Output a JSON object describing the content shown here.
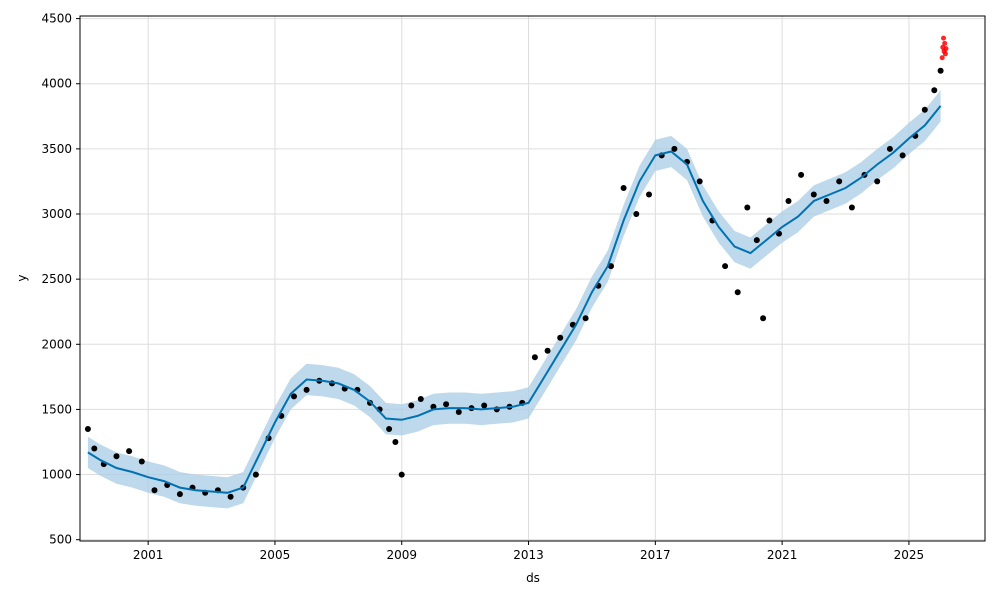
{
  "chart_data": {
    "type": "scatter",
    "title": "",
    "xlabel": "ds",
    "ylabel": "y",
    "xlim": [
      1998.85,
      2027.4
    ],
    "ylim": [
      490,
      4520
    ],
    "grid": true,
    "legend": "none",
    "x_ticks": [
      {
        "value": 2001,
        "label": "2001"
      },
      {
        "value": 2005,
        "label": "2005"
      },
      {
        "value": 2009,
        "label": "2009"
      },
      {
        "value": 2013,
        "label": "2013"
      },
      {
        "value": 2017,
        "label": "2017"
      },
      {
        "value": 2021,
        "label": "2021"
      },
      {
        "value": 2025,
        "label": "2025"
      }
    ],
    "y_ticks": [
      {
        "value": 500,
        "label": "500"
      },
      {
        "value": 1000,
        "label": "1000"
      },
      {
        "value": 1500,
        "label": "1500"
      },
      {
        "value": 2000,
        "label": "2000"
      },
      {
        "value": 2500,
        "label": "2500"
      },
      {
        "value": 3000,
        "label": "3000"
      },
      {
        "value": 3500,
        "label": "3500"
      },
      {
        "value": 4000,
        "label": "4000"
      },
      {
        "value": 4500,
        "label": "4500"
      }
    ],
    "colors": {
      "observed": "#000000",
      "forecast_points": "#ff0000",
      "trend_line": "#0072b2",
      "uncertainty_band": "#a8cce6",
      "grid": "#dddddd",
      "axis": "#000000"
    },
    "series": [
      {
        "kind": "trend",
        "x": [
          1999.1,
          1999.5,
          2000.0,
          2000.5,
          2001.0,
          2001.5,
          2002.0,
          2002.5,
          2003.0,
          2003.5,
          2004.0,
          2004.5,
          2005.0,
          2005.5,
          2006.0,
          2006.5,
          2007.0,
          2007.5,
          2008.0,
          2008.5,
          2009.0,
          2009.5,
          2010.0,
          2010.5,
          2011.0,
          2011.5,
          2012.0,
          2012.5,
          2013.0,
          2013.5,
          2014.0,
          2014.5,
          2015.0,
          2015.5,
          2016.0,
          2016.5,
          2017.0,
          2017.5,
          2018.0,
          2018.5,
          2019.0,
          2019.5,
          2020.0,
          2020.5,
          2021.0,
          2021.5,
          2022.0,
          2022.5,
          2023.0,
          2023.5,
          2024.0,
          2024.5,
          2025.0,
          2025.5,
          2026.0
        ],
        "y": [
          1170,
          1110,
          1050,
          1020,
          980,
          950,
          900,
          880,
          870,
          860,
          900,
          1150,
          1400,
          1620,
          1730,
          1720,
          1700,
          1650,
          1560,
          1430,
          1420,
          1450,
          1500,
          1510,
          1510,
          1500,
          1510,
          1520,
          1550,
          1750,
          1950,
          2150,
          2400,
          2600,
          2950,
          3250,
          3450,
          3480,
          3380,
          3100,
          2900,
          2750,
          2700,
          2800,
          2900,
          2980,
          3100,
          3150,
          3200,
          3280,
          3380,
          3470,
          3580,
          3680,
          3830
        ],
        "band_half_width": 120
      },
      {
        "kind": "observed",
        "x": [
          1999.1,
          1999.3,
          1999.6,
          2000.0,
          2000.4,
          2000.8,
          2001.2,
          2001.6,
          2002.0,
          2002.4,
          2002.8,
          2003.2,
          2003.6,
          2004.0,
          2004.4,
          2004.8,
          2005.2,
          2005.6,
          2006.0,
          2006.4,
          2006.8,
          2007.2,
          2007.6,
          2008.0,
          2008.3,
          2008.6,
          2008.8,
          2009.0,
          2009.3,
          2009.6,
          2010.0,
          2010.4,
          2010.8,
          2011.2,
          2011.6,
          2012.0,
          2012.4,
          2012.8,
          2013.2,
          2013.6,
          2014.0,
          2014.4,
          2014.8,
          2015.2,
          2015.6,
          2016.0,
          2016.4,
          2016.8,
          2017.2,
          2017.6,
          2018.0,
          2018.4,
          2018.8,
          2019.2,
          2019.6,
          2019.9,
          2020.2,
          2020.4,
          2020.6,
          2020.9,
          2021.2,
          2021.6,
          2022.0,
          2022.4,
          2022.8,
          2023.2,
          2023.6,
          2024.0,
          2024.4,
          2024.8,
          2025.2,
          2025.5,
          2025.8,
          2026.0
        ],
        "y": [
          1350,
          1200,
          1080,
          1140,
          1180,
          1100,
          880,
          920,
          850,
          900,
          860,
          880,
          830,
          900,
          1000,
          1280,
          1450,
          1600,
          1650,
          1720,
          1700,
          1660,
          1650,
          1550,
          1500,
          1350,
          1250,
          1000,
          1530,
          1580,
          1520,
          1540,
          1480,
          1510,
          1530,
          1500,
          1520,
          1550,
          1900,
          1950,
          2050,
          2150,
          2200,
          2450,
          2600,
          3200,
          3000,
          3150,
          3450,
          3500,
          3400,
          3250,
          2950,
          2600,
          2400,
          3050,
          2800,
          2200,
          2950,
          2850,
          3100,
          3300,
          3150,
          3100,
          3250,
          3050,
          3300,
          3250,
          3500,
          3450,
          3600,
          3800,
          3950,
          4100
        ]
      },
      {
        "kind": "forecast_points",
        "x": [
          2026.05,
          2026.07,
          2026.09,
          2026.11,
          2026.13,
          2026.15,
          2026.17
        ],
        "y": [
          4200,
          4280,
          4350,
          4250,
          4310,
          4230,
          4270
        ]
      }
    ]
  }
}
